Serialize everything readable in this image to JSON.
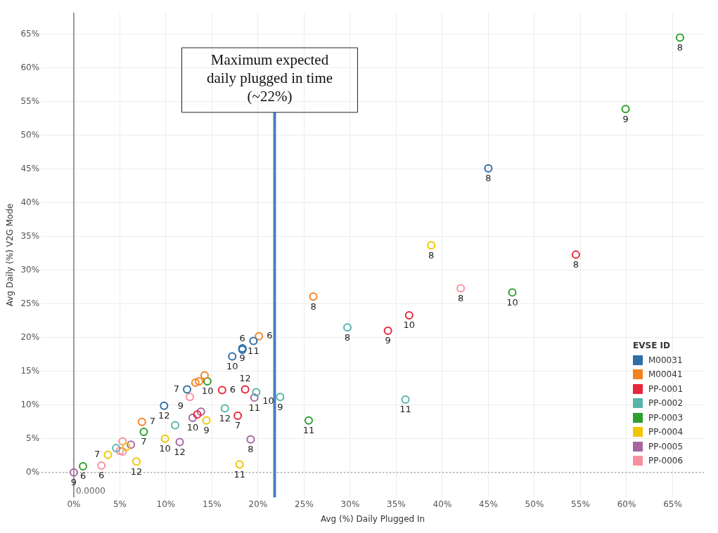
{
  "chart_data": {
    "type": "scatter",
    "xlabel": "Avg (%) Daily Plugged In",
    "ylabel": "Avg Daily (%) V2G Mode",
    "legend_title": "EVSE ID",
    "legend": "bottom right",
    "grid": true,
    "marker": "circle",
    "xlim": [
      -3.5,
      68.4
    ],
    "ylim": [
      -3.7,
      68.2
    ],
    "xticks": [
      {
        "value": 0,
        "label": "0%"
      },
      {
        "value": 5,
        "label": "5%"
      },
      {
        "value": 10,
        "label": "10%"
      },
      {
        "value": 15,
        "label": "15%"
      },
      {
        "value": 20,
        "label": "20%"
      },
      {
        "value": 25,
        "label": "25%"
      },
      {
        "value": 30,
        "label": "30%"
      },
      {
        "value": 35,
        "label": "35%"
      },
      {
        "value": 40,
        "label": "40%"
      },
      {
        "value": 45,
        "label": "45%"
      },
      {
        "value": 50,
        "label": "50%"
      },
      {
        "value": 55,
        "label": "55%"
      },
      {
        "value": 60,
        "label": "60%"
      },
      {
        "value": 65,
        "label": "65%"
      }
    ],
    "yticks": [
      {
        "value": 0,
        "label": "0%"
      },
      {
        "value": 5,
        "label": "5%"
      },
      {
        "value": 10,
        "label": "10%"
      },
      {
        "value": 15,
        "label": "15%"
      },
      {
        "value": 20,
        "label": "20%"
      },
      {
        "value": 25,
        "label": "25%"
      },
      {
        "value": 30,
        "label": "30%"
      },
      {
        "value": 35,
        "label": "35%"
      },
      {
        "value": 40,
        "label": "40%"
      },
      {
        "value": 45,
        "label": "45%"
      },
      {
        "value": 50,
        "label": "50%"
      },
      {
        "value": 55,
        "label": "55%"
      },
      {
        "value": 60,
        "label": "60%"
      },
      {
        "value": 65,
        "label": "65%"
      }
    ],
    "ref_lines": [
      {
        "axis": "x",
        "value": 0,
        "label": "0.0000",
        "color": "#7a7a7a",
        "line_style": "solid"
      },
      {
        "axis": "y",
        "value": 0,
        "color": "#aaaaaa",
        "line_style": "dotted"
      },
      {
        "axis": "x",
        "value": 21.8,
        "label": "Maximum expected daily plugged in time (~22%)",
        "color": "#4a7ec6",
        "line_style": "solid"
      }
    ],
    "series": [
      {
        "name": "M00031",
        "color": "#2f6fa8",
        "x": [
          9.8,
          12.3,
          17.2,
          18.3,
          18.3,
          19.5,
          45.0
        ],
        "values": [
          9.9,
          12.3,
          17.2,
          18.4,
          18.2,
          19.5,
          45.1
        ]
      },
      {
        "name": "M00041",
        "color": "#f5821f",
        "x": [
          7.4,
          13.2,
          13.6,
          14.2,
          20.1,
          26.0
        ],
        "values": [
          7.5,
          13.3,
          13.5,
          14.4,
          20.2,
          26.1
        ]
      },
      {
        "name": "PP-0001",
        "color": "#e8263a",
        "x": [
          13.4,
          16.1,
          18.6,
          17.8,
          34.1,
          36.4,
          54.5
        ],
        "values": [
          8.6,
          12.2,
          12.3,
          8.4,
          21.0,
          23.3,
          32.3
        ]
      },
      {
        "name": "PP-0002",
        "color": "#58b5ab",
        "x": [
          4.6,
          11.0,
          16.4,
          19.8,
          22.4,
          29.7,
          36.0
        ],
        "values": [
          3.6,
          7.0,
          9.5,
          11.9,
          11.2,
          21.5,
          10.8
        ]
      },
      {
        "name": "PP-0003",
        "color": "#2ca02c",
        "x": [
          1.0,
          7.6,
          14.5,
          25.5,
          47.6,
          59.9,
          65.8
        ],
        "values": [
          0.9,
          6.0,
          13.5,
          7.7,
          26.7,
          53.9,
          64.5
        ]
      },
      {
        "name": "PP-0004",
        "color": "#f2c500",
        "x": [
          3.7,
          5.7,
          6.8,
          9.9,
          14.4,
          18.0,
          38.8
        ],
        "values": [
          2.6,
          3.8,
          1.6,
          5.0,
          7.7,
          1.2,
          33.7
        ]
      },
      {
        "name": "PP-0005",
        "color": "#a865a0",
        "x": [
          0,
          6.2,
          11.5,
          12.9,
          13.8,
          19.2,
          19.6
        ],
        "values": [
          0,
          4.1,
          4.5,
          8.1,
          9.0,
          4.9,
          11.1
        ]
      },
      {
        "name": "PP-0006",
        "color": "#f7919e",
        "x": [
          3.0,
          5.0,
          5.3,
          5.3,
          12.6,
          42.0
        ],
        "values": [
          1.0,
          3.2,
          3.1,
          4.6,
          11.2,
          27.3
        ]
      }
    ],
    "annotations": [
      {
        "text": "12",
        "x": 9.8,
        "y": 9.9
      },
      {
        "text": "7",
        "x": 12.3,
        "y": 12.3
      },
      {
        "text": "10",
        "x": 17.2,
        "y": 17.2
      },
      {
        "text": "9",
        "x": 18.3,
        "y": 18.4
      },
      {
        "text": "6",
        "x": 18.3,
        "y": 18.2
      },
      {
        "text": "11",
        "x": 19.5,
        "y": 19.5
      },
      {
        "text": "8",
        "x": 45.0,
        "y": 45.1
      },
      {
        "text": "7",
        "x": 7.4,
        "y": 7.5
      },
      {
        "text": "10",
        "x": 13.2,
        "y": 13.3
      },
      {
        "text": "6",
        "x": 20.1,
        "y": 20.2
      },
      {
        "text": "8",
        "x": 26.0,
        "y": 26.1
      },
      {
        "text": "6",
        "x": 16.1,
        "y": 12.2
      },
      {
        "text": "12",
        "x": 18.6,
        "y": 12.3
      },
      {
        "text": "7",
        "x": 17.8,
        "y": 8.4
      },
      {
        "text": "9",
        "x": 34.1,
        "y": 21.0
      },
      {
        "text": "10",
        "x": 36.4,
        "y": 23.3
      },
      {
        "text": "8",
        "x": 54.5,
        "y": 32.3
      },
      {
        "text": "12",
        "x": 16.4,
        "y": 9.5
      },
      {
        "text": "10",
        "x": 19.8,
        "y": 11.9
      },
      {
        "text": "9",
        "x": 22.4,
        "y": 11.2
      },
      {
        "text": "8",
        "x": 29.7,
        "y": 21.5
      },
      {
        "text": "11",
        "x": 36.0,
        "y": 10.8
      },
      {
        "text": "6",
        "x": 1.0,
        "y": 0.9
      },
      {
        "text": "7",
        "x": 7.6,
        "y": 6.0
      },
      {
        "text": "11",
        "x": 25.5,
        "y": 7.7
      },
      {
        "text": "10",
        "x": 47.6,
        "y": 26.7
      },
      {
        "text": "9",
        "x": 59.9,
        "y": 53.9
      },
      {
        "text": "8",
        "x": 65.8,
        "y": 64.5
      },
      {
        "text": "7",
        "x": 3.7,
        "y": 2.6
      },
      {
        "text": "12",
        "x": 6.8,
        "y": 1.6
      },
      {
        "text": "10",
        "x": 9.9,
        "y": 5.0
      },
      {
        "text": "9",
        "x": 14.4,
        "y": 7.7
      },
      {
        "text": "11",
        "x": 18.0,
        "y": 1.2
      },
      {
        "text": "8",
        "x": 38.8,
        "y": 33.7
      },
      {
        "text": "9",
        "x": 0,
        "y": 0
      },
      {
        "text": "12",
        "x": 11.5,
        "y": 4.5
      },
      {
        "text": "10",
        "x": 12.9,
        "y": 8.1
      },
      {
        "text": "8",
        "x": 19.2,
        "y": 4.9
      },
      {
        "text": "11",
        "x": 19.6,
        "y": 11.1
      },
      {
        "text": "6",
        "x": 3.0,
        "y": 1.0
      },
      {
        "text": "9",
        "x": 12.6,
        "y": 11.2
      },
      {
        "text": "8",
        "x": 42.0,
        "y": 27.3
      }
    ]
  }
}
